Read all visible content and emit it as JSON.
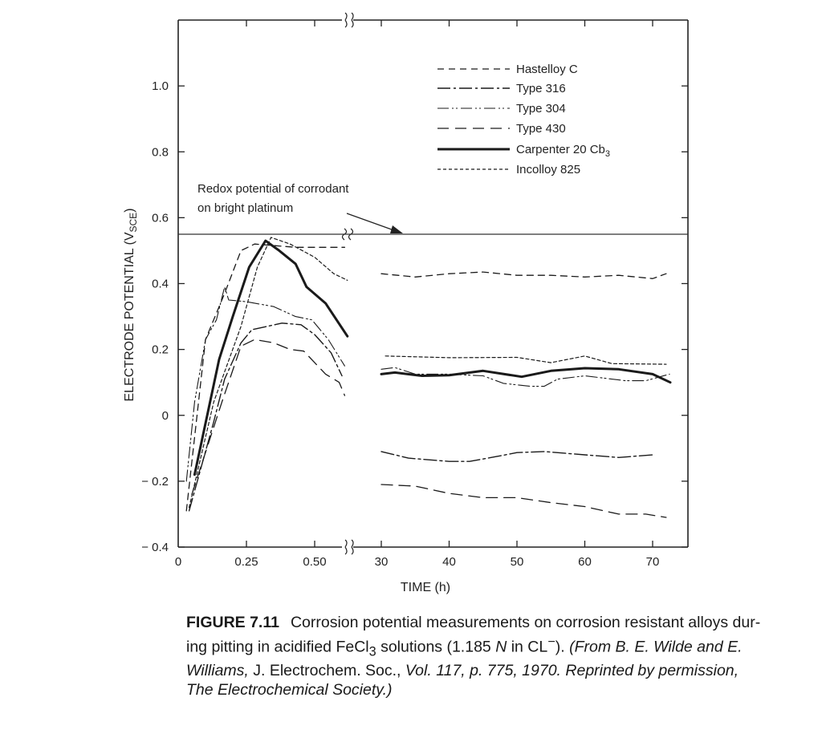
{
  "chart_data": {
    "type": "line",
    "title": "",
    "xlabel": "TIME (h)",
    "ylabel_main": "ELECTRODE POTENTIAL (V",
    "ylabel_sub": "SCE",
    "ylabel_end": ")",
    "ylim": [
      -0.4,
      1.2
    ],
    "x_axis_broken": true,
    "x_segments": [
      [
        0,
        0.62
      ],
      [
        30,
        75
      ]
    ],
    "yticks": [
      -0.4,
      -0.2,
      0,
      0.2,
      0.4,
      0.6,
      0.8,
      1.0
    ],
    "ytick_labels": [
      "− 0.4",
      "− 0.2",
      "0",
      "0.2",
      "0.4",
      "0.6",
      "0.8",
      "1.0"
    ],
    "xticks": [
      0,
      0.25,
      0.5,
      30,
      40,
      50,
      60,
      70
    ],
    "xtick_labels": [
      "0",
      "0.25",
      "0.50",
      "30",
      "40",
      "50",
      "60",
      "70"
    ],
    "grid": false,
    "legend_position": "top-right",
    "reference_line": {
      "value": 0.55,
      "label_line1": "Redox potential of corrodant",
      "label_line2": "on bright platinum"
    },
    "series": [
      {
        "name": "Hastelloy C",
        "name_main": "Hastelloy C",
        "name_sub": "",
        "style": "dashed",
        "points": [
          [
            0.03,
            -0.29
          ],
          [
            0.1,
            0.23
          ],
          [
            0.17,
            0.37
          ],
          [
            0.23,
            0.5
          ],
          [
            0.28,
            0.52
          ],
          [
            0.43,
            0.51
          ],
          [
            0.61,
            0.51
          ],
          [
            30,
            0.43
          ],
          [
            35,
            0.42
          ],
          [
            40,
            0.43
          ],
          [
            45,
            0.435
          ],
          [
            50,
            0.425
          ],
          [
            55,
            0.425
          ],
          [
            60,
            0.42
          ],
          [
            65,
            0.425
          ],
          [
            70,
            0.415
          ],
          [
            72,
            0.43
          ]
        ]
      },
      {
        "name": "Type 316",
        "name_main": "Type 316",
        "name_sub": "",
        "style": "dash-dot",
        "points": [
          [
            0.04,
            -0.29
          ],
          [
            0.13,
            -0.02
          ],
          [
            0.17,
            0.11
          ],
          [
            0.23,
            0.22
          ],
          [
            0.27,
            0.26
          ],
          [
            0.38,
            0.28
          ],
          [
            0.45,
            0.275
          ],
          [
            0.5,
            0.245
          ],
          [
            0.56,
            0.19
          ],
          [
            0.6,
            0.12
          ],
          [
            30,
            -0.11
          ],
          [
            34,
            -0.13
          ],
          [
            40,
            -0.14
          ],
          [
            43,
            -0.14
          ],
          [
            47,
            -0.125
          ],
          [
            50,
            -0.113
          ],
          [
            54,
            -0.11
          ],
          [
            60,
            -0.12
          ],
          [
            65,
            -0.128
          ],
          [
            70,
            -0.12
          ]
        ]
      },
      {
        "name": "Type 304",
        "name_main": "Type 304",
        "name_sub": "",
        "style": "dash-dot-dot",
        "points": [
          [
            0.03,
            -0.2
          ],
          [
            0.06,
            0.04
          ],
          [
            0.1,
            0.23
          ],
          [
            0.14,
            0.29
          ],
          [
            0.17,
            0.39
          ],
          [
            0.185,
            0.35
          ],
          [
            0.25,
            0.345
          ],
          [
            0.35,
            0.33
          ],
          [
            0.43,
            0.3
          ],
          [
            0.49,
            0.29
          ],
          [
            0.55,
            0.23
          ],
          [
            0.61,
            0.15
          ],
          [
            30,
            0.14
          ],
          [
            32,
            0.145
          ],
          [
            35,
            0.125
          ],
          [
            40,
            0.125
          ],
          [
            45,
            0.12
          ],
          [
            48,
            0.097
          ],
          [
            52,
            0.088
          ],
          [
            54,
            0.088
          ],
          [
            56,
            0.11
          ],
          [
            60,
            0.12
          ],
          [
            66,
            0.105
          ],
          [
            69,
            0.105
          ],
          [
            72.5,
            0.125
          ]
        ]
      },
      {
        "name": "Type 430",
        "name_main": "Type 430",
        "name_sub": "",
        "style": "long-dash",
        "points": [
          [
            0.05,
            -0.24
          ],
          [
            0.16,
            0.04
          ],
          [
            0.23,
            0.21
          ],
          [
            0.28,
            0.23
          ],
          [
            0.35,
            0.22
          ],
          [
            0.41,
            0.2
          ],
          [
            0.46,
            0.195
          ],
          [
            0.5,
            0.16
          ],
          [
            0.54,
            0.125
          ],
          [
            0.59,
            0.1
          ],
          [
            0.61,
            0.06
          ],
          [
            30,
            -0.21
          ],
          [
            35,
            -0.215
          ],
          [
            40,
            -0.237
          ],
          [
            45,
            -0.25
          ],
          [
            50,
            -0.25
          ],
          [
            55,
            -0.265
          ],
          [
            60,
            -0.277
          ],
          [
            65,
            -0.3
          ],
          [
            69,
            -0.3
          ],
          [
            72,
            -0.31
          ]
        ]
      },
      {
        "name": "Carpenter 20 Cb3",
        "name_main": "Carpenter 20 Cb",
        "name_sub": "3",
        "style": "solid-bold",
        "points": [
          [
            0.06,
            -0.18
          ],
          [
            0.15,
            0.17
          ],
          [
            0.2,
            0.3
          ],
          [
            0.26,
            0.45
          ],
          [
            0.32,
            0.53
          ],
          [
            0.37,
            0.5
          ],
          [
            0.43,
            0.46
          ],
          [
            0.47,
            0.39
          ],
          [
            0.54,
            0.34
          ],
          [
            0.62,
            0.24
          ],
          [
            30,
            0.125
          ],
          [
            32,
            0.13
          ],
          [
            36,
            0.12
          ],
          [
            40,
            0.122
          ],
          [
            45,
            0.135
          ],
          [
            50.7,
            0.117
          ],
          [
            55,
            0.135
          ],
          [
            60,
            0.143
          ],
          [
            65,
            0.14
          ],
          [
            70,
            0.125
          ],
          [
            72.6,
            0.1
          ]
        ]
      },
      {
        "name": "Incolloy 825",
        "name_main": "Incolloy 825",
        "name_sub": "",
        "style": "short-dash",
        "points": [
          [
            0.04,
            -0.28
          ],
          [
            0.13,
            0.04
          ],
          [
            0.23,
            0.27
          ],
          [
            0.29,
            0.45
          ],
          [
            0.34,
            0.54
          ],
          [
            0.41,
            0.52
          ],
          [
            0.5,
            0.48
          ],
          [
            0.57,
            0.43
          ],
          [
            0.62,
            0.41
          ],
          [
            30.6,
            0.18
          ],
          [
            40,
            0.175
          ],
          [
            50,
            0.176
          ],
          [
            55,
            0.16
          ],
          [
            60,
            0.18
          ],
          [
            64,
            0.157
          ],
          [
            72,
            0.155
          ]
        ]
      }
    ]
  },
  "caption": {
    "label": "FIGURE 7.11",
    "line1": "Corrosion potential measurements on corrosion resistant alloys dur-",
    "line2a": "ing pitting in acidified FeCl",
    "line2_sub": "3",
    "line2b": " solutions (1.185 ",
    "line2_n": "N",
    "line2c": " in CL",
    "line2_sup": "−",
    "line2d": "). ",
    "line2_italic": "(From B. E. Wilde and E.",
    "line3_italic_a": "Williams,",
    "line3_journal": " J. Electrochem. Soc.,",
    "line3_italic_b": " Vol. 117, p. 775, 1970. Reprinted by permission,",
    "line4_italic": "The Electrochemical Society.)"
  }
}
